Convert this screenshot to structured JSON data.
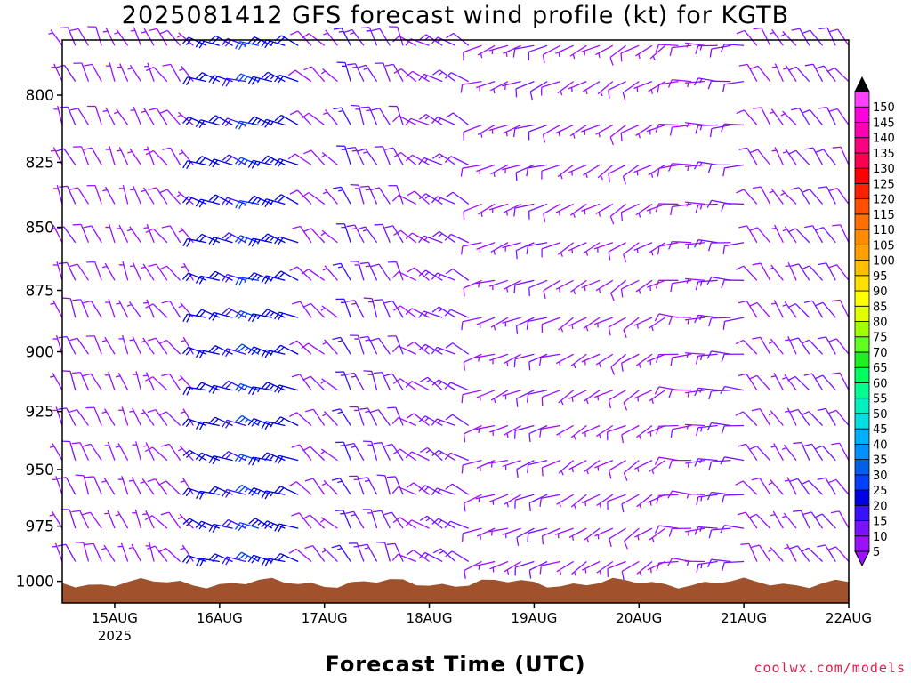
{
  "chart_data": {
    "type": "wind-barb-time-height",
    "title": "2025081412 GFS forecast wind profile (kt) for KGTB",
    "xlabel": "Forecast Time (UTC)",
    "ylabel": "",
    "credit": "coolwx.com/models",
    "x_ticks": [
      "15AUG",
      "16AUG",
      "17AUG",
      "18AUG",
      "19AUG",
      "20AUG",
      "21AUG",
      "22AUG"
    ],
    "x_year_label": "2025",
    "x_start_hour": 12,
    "x_range_days": [
      0,
      7.5
    ],
    "y_scale": "log",
    "y_range_hPa": [
      1010,
      780
    ],
    "y_ticks": [
      800,
      825,
      850,
      875,
      900,
      925,
      950,
      975,
      1000
    ],
    "barb_levels_hPa": [
      782,
      795,
      811,
      826,
      841,
      856,
      871,
      886,
      901,
      916,
      931,
      946,
      961,
      976,
      991,
      1002
    ],
    "time_step_hours": 3,
    "colorbar": {
      "labels": [
        5,
        10,
        15,
        20,
        25,
        30,
        35,
        40,
        45,
        50,
        55,
        60,
        65,
        70,
        75,
        80,
        85,
        90,
        95,
        100,
        105,
        110,
        115,
        120,
        125,
        130,
        135,
        140,
        145,
        150
      ],
      "colors": [
        "#9b10ff",
        "#7a12ff",
        "#3a10ff",
        "#0000e6",
        "#0040ff",
        "#0060e8",
        "#0090ff",
        "#00b0ff",
        "#00e0e0",
        "#00f0c0",
        "#00ff90",
        "#00ff60",
        "#20f020",
        "#60ff20",
        "#a0ff00",
        "#e0ff00",
        "#ffff00",
        "#ffe000",
        "#ffc000",
        "#ffa000",
        "#ff8c00",
        "#ff7000",
        "#ff5000",
        "#ff2000",
        "#ff0000",
        "#ff0050",
        "#ff0080",
        "#ff00b0",
        "#ff00e0",
        "#ff40ff"
      ]
    },
    "terrain_color": "#a0522d",
    "terrain_top_hPa": 1000,
    "segments": [
      {
        "day_start": 0.0,
        "day_end": 0.95,
        "dir": 335,
        "speed": 7
      },
      {
        "day_start": 0.95,
        "day_end": 1.35,
        "dir": 320,
        "speed": 6
      },
      {
        "day_start": 1.35,
        "day_end": 2.35,
        "dir": 290,
        "speed": 22
      },
      {
        "day_start": 2.35,
        "day_end": 2.7,
        "dir": 315,
        "speed": 10
      },
      {
        "day_start": 2.7,
        "day_end": 3.3,
        "dir": 335,
        "speed": 12
      },
      {
        "day_start": 3.3,
        "day_end": 3.9,
        "dir": 300,
        "speed": 11
      },
      {
        "day_start": 3.9,
        "day_end": 4.8,
        "dir": 250,
        "speed": 8
      },
      {
        "day_start": 4.8,
        "day_end": 5.8,
        "dir": 240,
        "speed": 6
      },
      {
        "day_start": 5.8,
        "day_end": 6.6,
        "dir": 270,
        "speed": 10
      },
      {
        "day_start": 6.6,
        "day_end": 7.5,
        "dir": 325,
        "speed": 9
      }
    ]
  }
}
